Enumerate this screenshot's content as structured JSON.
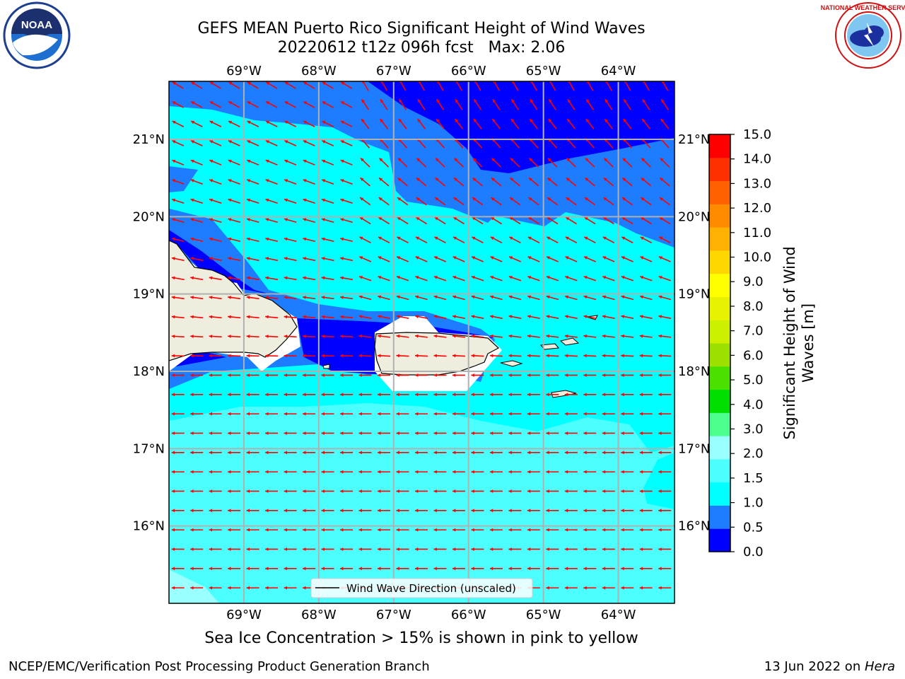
{
  "header": {
    "title_line1": "GEFS MEAN Puerto Rico Significant Height of Wind Waves",
    "title_line2": "20220612 t12z 096h fcst   Max: 2.06"
  },
  "logos": {
    "left": "NOAA",
    "left_ring_text": "NATIONAL OCEANIC AND ATMOSPHERIC ADMINISTRATION · U.S. DEPARTMENT OF COMMERCE",
    "right_ring_text": "NATIONAL WEATHER SERVICE"
  },
  "map": {
    "lon_ticks": [
      "69°W",
      "68°W",
      "67°W",
      "66°W",
      "65°W",
      "64°W"
    ],
    "lat_ticks": [
      "21°N",
      "20°N",
      "19°N",
      "18°N",
      "17°N",
      "16°N"
    ],
    "lon_range": [
      -70.0,
      -63.25
    ],
    "lat_range": [
      15.0,
      21.75
    ],
    "grid": true,
    "wave_direction_deg_to": 260,
    "legend_label": "Wind Wave Direction (unscaled)",
    "colors": {
      "land": "#efeddd",
      "coast": "#000000",
      "arrow": "#ff0000",
      "grid": "#b0b0b0"
    }
  },
  "colorbar": {
    "label": "Significant Height of Wind Waves [m]",
    "label_line1": "Significant Height of Wind",
    "label_line2": "Waves [m]",
    "ticks": [
      "0.0",
      "0.5",
      "1.0",
      "1.5",
      "2.0",
      "3.0",
      "4.0",
      "5.0",
      "6.0",
      "7.0",
      "8.0",
      "9.0",
      "10.0",
      "11.0",
      "12.0",
      "13.0",
      "14.0",
      "15.0"
    ],
    "colors": [
      "#0000ff",
      "#1e7cff",
      "#00ffff",
      "#4cffff",
      "#99ffff",
      "#4dff8c",
      "#00e000",
      "#4ae000",
      "#9de000",
      "#cdf000",
      "#e6f200",
      "#ffff00",
      "#ffd700",
      "#ffb000",
      "#ff8c00",
      "#ff6000",
      "#ff3000",
      "#ff0000"
    ]
  },
  "notes": {
    "sea_ice": "Sea Ice Concentration > 15% is shown in pink to yellow"
  },
  "footer": {
    "left": "NCEP/EMC/Verification Post Processing Product Generation Branch",
    "right_prefix": "13 Jun 2022 on ",
    "right_host": "Hera"
  }
}
